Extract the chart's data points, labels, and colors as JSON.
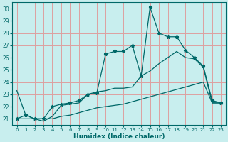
{
  "xlabel": "Humidex (Indice chaleur)",
  "xlim": [
    -0.5,
    23.5
  ],
  "ylim": [
    20.5,
    30.5
  ],
  "yticks": [
    21,
    22,
    23,
    24,
    25,
    26,
    27,
    28,
    29,
    30
  ],
  "xticks": [
    0,
    1,
    2,
    3,
    4,
    5,
    6,
    7,
    8,
    9,
    10,
    11,
    12,
    13,
    14,
    15,
    16,
    17,
    18,
    19,
    20,
    21,
    22,
    23
  ],
  "bg_color": "#c8eeee",
  "grid_color": "#dda0a0",
  "line_color": "#006868",
  "line_peaked_x": [
    0,
    1,
    2,
    3,
    4,
    5,
    6,
    7,
    8,
    9,
    10,
    11,
    12,
    13,
    14,
    15,
    16,
    17,
    18,
    19,
    20,
    21,
    22,
    23
  ],
  "line_peaked_y": [
    21.0,
    21.3,
    21.0,
    21.0,
    22.0,
    22.2,
    22.3,
    22.5,
    23.0,
    23.1,
    26.3,
    26.5,
    26.5,
    27.0,
    24.5,
    30.1,
    28.0,
    27.7,
    27.7,
    26.6,
    26.0,
    25.3,
    22.5,
    22.3
  ],
  "line_mid_x": [
    0,
    1,
    2,
    3,
    4,
    5,
    6,
    7,
    8,
    9,
    10,
    11,
    12,
    13,
    14,
    15,
    16,
    17,
    18,
    19,
    20,
    21,
    22,
    23
  ],
  "line_mid_y": [
    23.3,
    21.3,
    21.0,
    20.8,
    21.2,
    22.1,
    22.2,
    22.3,
    23.0,
    23.2,
    23.3,
    23.5,
    23.5,
    23.6,
    24.5,
    24.9,
    25.5,
    26.0,
    26.5,
    26.0,
    25.9,
    25.2,
    22.3,
    22.3
  ],
  "line_bot_x": [
    0,
    1,
    2,
    3,
    4,
    5,
    6,
    7,
    8,
    9,
    10,
    11,
    12,
    13,
    14,
    15,
    16,
    17,
    18,
    19,
    20,
    21,
    22,
    23
  ],
  "line_bot_y": [
    21.0,
    21.0,
    21.0,
    21.0,
    21.0,
    21.2,
    21.3,
    21.5,
    21.7,
    21.9,
    22.0,
    22.1,
    22.2,
    22.4,
    22.6,
    22.8,
    23.0,
    23.2,
    23.4,
    23.6,
    23.8,
    24.0,
    22.3,
    22.3
  ]
}
